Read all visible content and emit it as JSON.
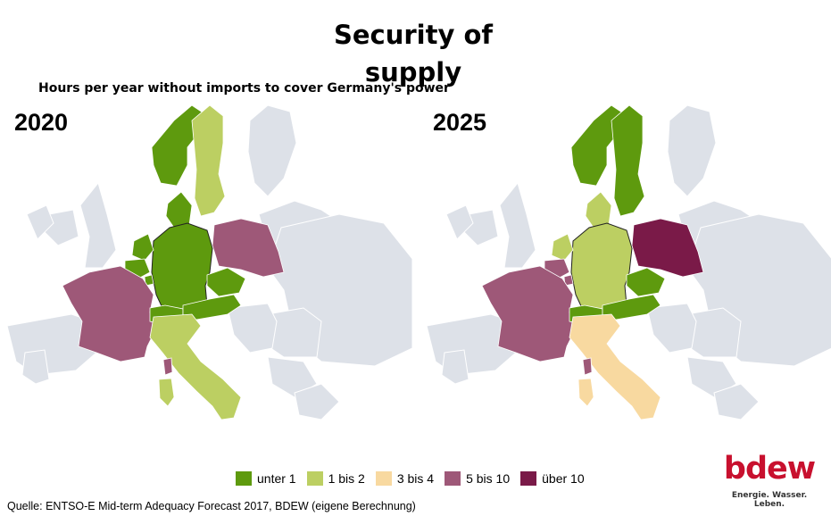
{
  "title": "Security of supply",
  "subtitle": "Hours per year without imports to cover Germany's power",
  "maps": [
    {
      "year": "2020",
      "countries": {
        "norway": "unter 1",
        "sweden": "1 bis 2",
        "denmark": "unter 1",
        "germany": "unter 1",
        "netherlands": "unter 1",
        "belgium": "unter 1",
        "luxembourg": "unter 1",
        "france": "5 bis 10",
        "switzerland": "unter 1",
        "austria": "unter 1",
        "czechia": "unter 1",
        "poland": "5 bis 10",
        "italy": "1 bis 2",
        "sardinia": "1 bis 2",
        "corsica": "5 bis 10"
      }
    },
    {
      "year": "2025",
      "countries": {
        "norway": "unter 1",
        "sweden": "unter 1",
        "denmark": "1 bis 2",
        "germany": "1 bis 2",
        "netherlands": "1 bis 2",
        "belgium": "5 bis 10",
        "luxembourg": "5 bis 10",
        "france": "5 bis 10",
        "switzerland": "unter 1",
        "austria": "unter 1",
        "czechia": "unter 1",
        "poland": "über 10",
        "italy": "3 bis 4",
        "sardinia": "3 bis 4",
        "corsica": "5 bis 10"
      }
    }
  ],
  "legend": [
    {
      "label": "unter 1",
      "color": "#5e9a0e"
    },
    {
      "label": "1 bis 2",
      "color": "#bccf62"
    },
    {
      "label": "3 bis 4",
      "color": "#f8d9a0"
    },
    {
      "label": "5 bis 10",
      "color": "#9e5878"
    },
    {
      "label": "über 10",
      "color": "#7a1a48"
    }
  ],
  "base_color": "#dde1e8",
  "source": "Quelle: ENTSO-E Mid-term Adequacy Forecast 2017, BDEW (eigene Berechnung)",
  "logo": {
    "wordmark": "bdew",
    "tagline": "Energie. Wasser. Leben."
  }
}
